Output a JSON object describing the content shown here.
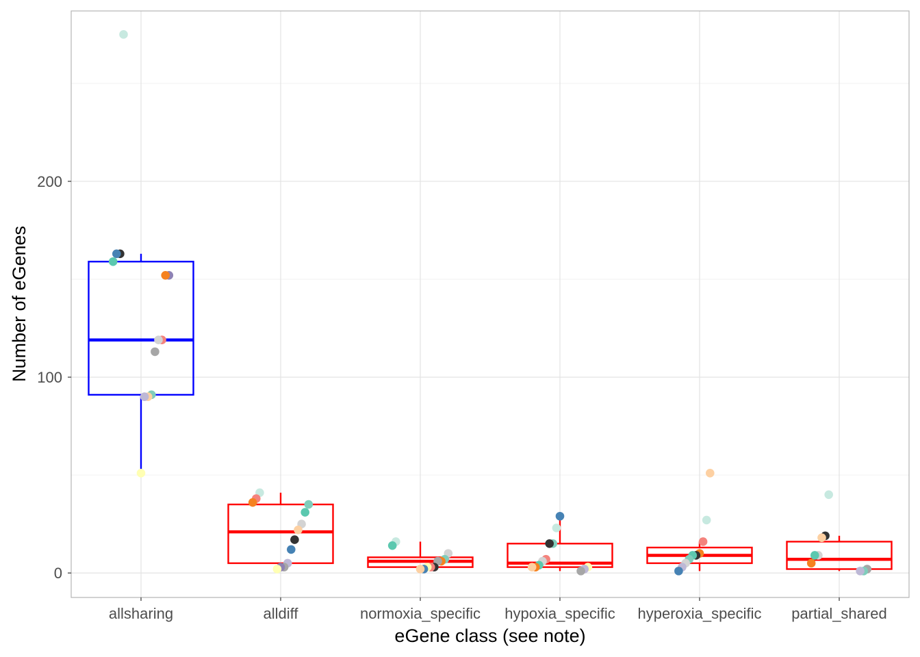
{
  "chart_data": {
    "type": "box",
    "xlabel": "eGene class (see note)",
    "ylabel": "Number of eGenes",
    "categories": [
      "allsharing",
      "alldiff",
      "normoxia_specific",
      "hypoxia_specific",
      "hyperoxia_specific",
      "partial_shared"
    ],
    "ylim": [
      -12.5,
      287
    ],
    "y_ticks": [
      0,
      100,
      200
    ],
    "grid": true,
    "legend": "none",
    "box_stats": [
      {
        "category": "allsharing",
        "whisker_low": 51,
        "q1": 91,
        "median": 119,
        "q3": 159,
        "whisker_high": 163,
        "color": "#0000FF"
      },
      {
        "category": "alldiff",
        "whisker_low": 2,
        "q1": 5,
        "median": 21,
        "q3": 35,
        "whisker_high": 41,
        "color": "#FF0000"
      },
      {
        "category": "normoxia_specific",
        "whisker_low": 2,
        "q1": 3,
        "median": 6,
        "q3": 8,
        "whisker_high": 16,
        "color": "#FF0000"
      },
      {
        "category": "hypoxia_specific",
        "whisker_low": 1,
        "q1": 3,
        "median": 5,
        "q3": 15,
        "whisker_high": 29,
        "color": "#FF0000"
      },
      {
        "category": "hyperoxia_specific",
        "whisker_low": 1,
        "q1": 5,
        "median": 9,
        "q3": 13,
        "whisker_high": 16,
        "color": "#FF0000"
      },
      {
        "category": "partial_shared",
        "whisker_low": 1,
        "q1": 2,
        "median": 7,
        "q3": 16,
        "whisker_high": 19,
        "color": "#FF0000"
      }
    ],
    "points": [
      {
        "category": "allsharing",
        "y": 275,
        "color": "#C7E9E0"
      },
      {
        "category": "allsharing",
        "y": 163,
        "color": "#333333"
      },
      {
        "category": "allsharing",
        "y": 163,
        "color": "#4682B4"
      },
      {
        "category": "allsharing",
        "y": 159,
        "color": "#5BC8AF"
      },
      {
        "category": "allsharing",
        "y": 152,
        "color": "#8E82B4"
      },
      {
        "category": "allsharing",
        "y": 152,
        "color": "#F58220"
      },
      {
        "category": "allsharing",
        "y": 119,
        "color": "#F4837D"
      },
      {
        "category": "allsharing",
        "y": 119,
        "color": "#D3D3D3"
      },
      {
        "category": "allsharing",
        "y": 113,
        "color": "#A6A6A6"
      },
      {
        "category": "allsharing",
        "y": 91,
        "color": "#7FCDBB"
      },
      {
        "category": "allsharing",
        "y": 90,
        "color": "#FDD0A2"
      },
      {
        "category": "allsharing",
        "y": 90,
        "color": "#BDB8D6"
      },
      {
        "category": "allsharing",
        "y": 51,
        "color": "#FFFFB3"
      },
      {
        "category": "alldiff",
        "y": 41,
        "color": "#C7E9E0"
      },
      {
        "category": "alldiff",
        "y": 38,
        "color": "#F4837D"
      },
      {
        "category": "alldiff",
        "y": 36,
        "color": "#F58220"
      },
      {
        "category": "alldiff",
        "y": 35,
        "color": "#7FCDBB"
      },
      {
        "category": "alldiff",
        "y": 31,
        "color": "#5BC8AF"
      },
      {
        "category": "alldiff",
        "y": 25,
        "color": "#D3D3D3"
      },
      {
        "category": "alldiff",
        "y": 22,
        "color": "#FDD0A2"
      },
      {
        "category": "alldiff",
        "y": 17,
        "color": "#333333"
      },
      {
        "category": "alldiff",
        "y": 12,
        "color": "#4682B4"
      },
      {
        "category": "alldiff",
        "y": 5,
        "color": "#BDB8D6"
      },
      {
        "category": "alldiff",
        "y": 3,
        "color": "#A6A6A6"
      },
      {
        "category": "alldiff",
        "y": 3,
        "color": "#8E82B4"
      },
      {
        "category": "alldiff",
        "y": 2,
        "color": "#FFFFB3"
      },
      {
        "category": "normoxia_specific",
        "y": 16,
        "color": "#C7E9E0"
      },
      {
        "category": "normoxia_specific",
        "y": 14,
        "color": "#5BC8AF"
      },
      {
        "category": "normoxia_specific",
        "y": 10,
        "color": "#D3D3D3"
      },
      {
        "category": "normoxia_specific",
        "y": 7,
        "color": "#7FCDBB"
      },
      {
        "category": "normoxia_specific",
        "y": 6,
        "color": "#F58220"
      },
      {
        "category": "normoxia_specific",
        "y": 6,
        "color": "#A6A6A6"
      },
      {
        "category": "normoxia_specific",
        "y": 3,
        "color": "#333333"
      },
      {
        "category": "normoxia_specific",
        "y": 3,
        "color": "#F4837D"
      },
      {
        "category": "normoxia_specific",
        "y": 3,
        "color": "#FFFFB3"
      },
      {
        "category": "normoxia_specific",
        "y": 2,
        "color": "#4682B4"
      },
      {
        "category": "normoxia_specific",
        "y": 2,
        "color": "#FDD0A2"
      },
      {
        "category": "hypoxia_specific",
        "y": 29,
        "color": "#4682B4"
      },
      {
        "category": "hypoxia_specific",
        "y": 23,
        "color": "#C7E9E0"
      },
      {
        "category": "hypoxia_specific",
        "y": 15,
        "color": "#7FCDBB"
      },
      {
        "category": "hypoxia_specific",
        "y": 15,
        "color": "#333333"
      },
      {
        "category": "hypoxia_specific",
        "y": 7,
        "color": "#F4837D"
      },
      {
        "category": "hypoxia_specific",
        "y": 6,
        "color": "#D3D3D3"
      },
      {
        "category": "hypoxia_specific",
        "y": 4,
        "color": "#5BC8AF"
      },
      {
        "category": "hypoxia_specific",
        "y": 3,
        "color": "#F58220"
      },
      {
        "category": "hypoxia_specific",
        "y": 3,
        "color": "#FDD0A2"
      },
      {
        "category": "hypoxia_specific",
        "y": 3,
        "color": "#FFFFB3"
      },
      {
        "category": "hypoxia_specific",
        "y": 2,
        "color": "#BDB8D6"
      },
      {
        "category": "hypoxia_specific",
        "y": 1,
        "color": "#A6A6A6"
      },
      {
        "category": "hyperoxia_specific",
        "y": 51,
        "color": "#FDD0A2"
      },
      {
        "category": "hyperoxia_specific",
        "y": 27,
        "color": "#C7E9E0"
      },
      {
        "category": "hyperoxia_specific",
        "y": 16,
        "color": "#F4837D"
      },
      {
        "category": "hyperoxia_specific",
        "y": 10,
        "color": "#F58220"
      },
      {
        "category": "hyperoxia_specific",
        "y": 9,
        "color": "#333333"
      },
      {
        "category": "hyperoxia_specific",
        "y": 9,
        "color": "#5BC8AF"
      },
      {
        "category": "hyperoxia_specific",
        "y": 7,
        "color": "#7FCDBB"
      },
      {
        "category": "hyperoxia_specific",
        "y": 5,
        "color": "#D3D3D3"
      },
      {
        "category": "hyperoxia_specific",
        "y": 3,
        "color": "#BDB8D6"
      },
      {
        "category": "hyperoxia_specific",
        "y": 1,
        "color": "#4682B4"
      },
      {
        "category": "partial_shared",
        "y": 40,
        "color": "#C7E9E0"
      },
      {
        "category": "partial_shared",
        "y": 19,
        "color": "#333333"
      },
      {
        "category": "partial_shared",
        "y": 18,
        "color": "#FDD0A2"
      },
      {
        "category": "partial_shared",
        "y": 9,
        "color": "#D3D3D3"
      },
      {
        "category": "partial_shared",
        "y": 9,
        "color": "#5BC8AF"
      },
      {
        "category": "partial_shared",
        "y": 5,
        "color": "#F58220"
      },
      {
        "category": "partial_shared",
        "y": 2,
        "color": "#A6A6A6"
      },
      {
        "category": "partial_shared",
        "y": 1,
        "color": "#7FCDBB"
      },
      {
        "category": "partial_shared",
        "y": 1,
        "color": "#BDB8D6"
      }
    ]
  }
}
